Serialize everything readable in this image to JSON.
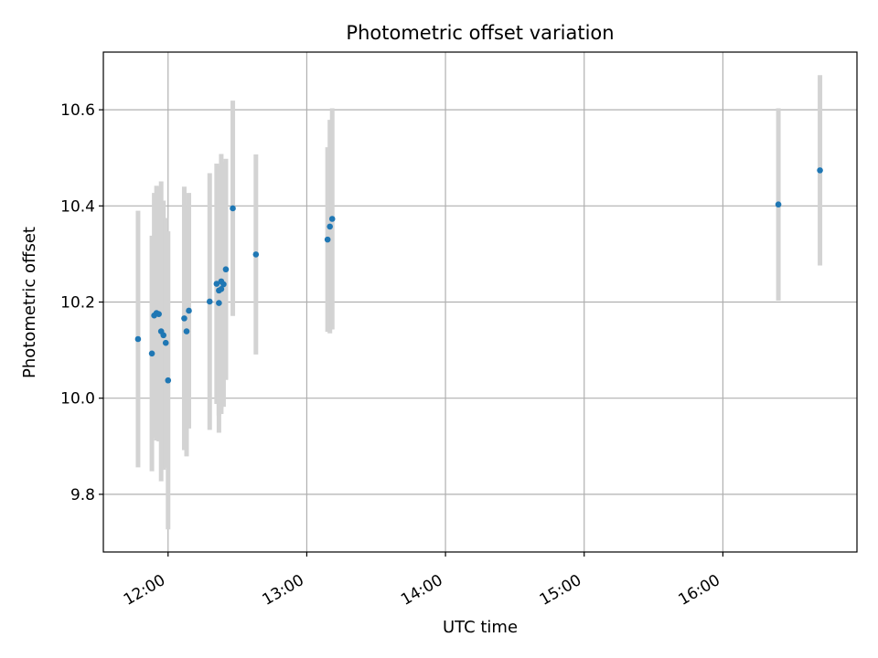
{
  "chart_data": {
    "type": "scatter",
    "title": "Photometric offset variation",
    "xlabel": "UTC time",
    "ylabel": "Photometric offset",
    "grid": true,
    "legend": "none",
    "x_is_time": true,
    "xlim": [
      "11:32",
      "16:58"
    ],
    "ylim": [
      9.68,
      10.72
    ],
    "xticks": [
      "12:00",
      "13:00",
      "14:00",
      "15:00",
      "16:00"
    ],
    "yticks": [
      9.8,
      10.0,
      10.2,
      10.4,
      10.6
    ],
    "colors": {
      "point": "#1f77b4",
      "errorbar": "#d3d3d3",
      "grid": "#b0b0b0"
    },
    "series": [
      {
        "points": [
          {
            "x": "11:47",
            "y": 10.123,
            "err": 0.267
          },
          {
            "x": "11:53",
            "y": 10.093,
            "err": 0.245
          },
          {
            "x": "11:54",
            "y": 10.172,
            "err": 0.255
          },
          {
            "x": "11:55",
            "y": 10.177,
            "err": 0.265
          },
          {
            "x": "11:56",
            "y": 10.175,
            "err": 0.265
          },
          {
            "x": "11:57",
            "y": 10.139,
            "err": 0.312
          },
          {
            "x": "11:58",
            "y": 10.131,
            "err": 0.28
          },
          {
            "x": "11:59",
            "y": 10.115,
            "err": 0.26
          },
          {
            "x": "12:00",
            "y": 10.037,
            "err": 0.31
          },
          {
            "x": "12:07",
            "y": 10.166,
            "err": 0.274
          },
          {
            "x": "12:08",
            "y": 10.139,
            "err": 0.26
          },
          {
            "x": "12:09",
            "y": 10.182,
            "err": 0.245
          },
          {
            "x": "12:18",
            "y": 10.201,
            "err": 0.267
          },
          {
            "x": "12:21",
            "y": 10.238,
            "err": 0.25
          },
          {
            "x": "12:22",
            "y": 10.224,
            "err": 0.26
          },
          {
            "x": "12:22",
            "y": 10.198,
            "err": 0.27
          },
          {
            "x": "12:23",
            "y": 10.243,
            "err": 0.265
          },
          {
            "x": "12:23",
            "y": 10.227,
            "err": 0.26
          },
          {
            "x": "12:24",
            "y": 10.237,
            "err": 0.255
          },
          {
            "x": "12:25",
            "y": 10.268,
            "err": 0.23
          },
          {
            "x": "12:28",
            "y": 10.395,
            "err": 0.224
          },
          {
            "x": "12:38",
            "y": 10.299,
            "err": 0.208
          },
          {
            "x": "13:09",
            "y": 10.33,
            "err": 0.192
          },
          {
            "x": "13:10",
            "y": 10.357,
            "err": 0.222
          },
          {
            "x": "13:11",
            "y": 10.373,
            "err": 0.23
          },
          {
            "x": "16:24",
            "y": 10.403,
            "err": 0.2
          },
          {
            "x": "16:42",
            "y": 10.474,
            "err": 0.198
          }
        ]
      }
    ]
  }
}
